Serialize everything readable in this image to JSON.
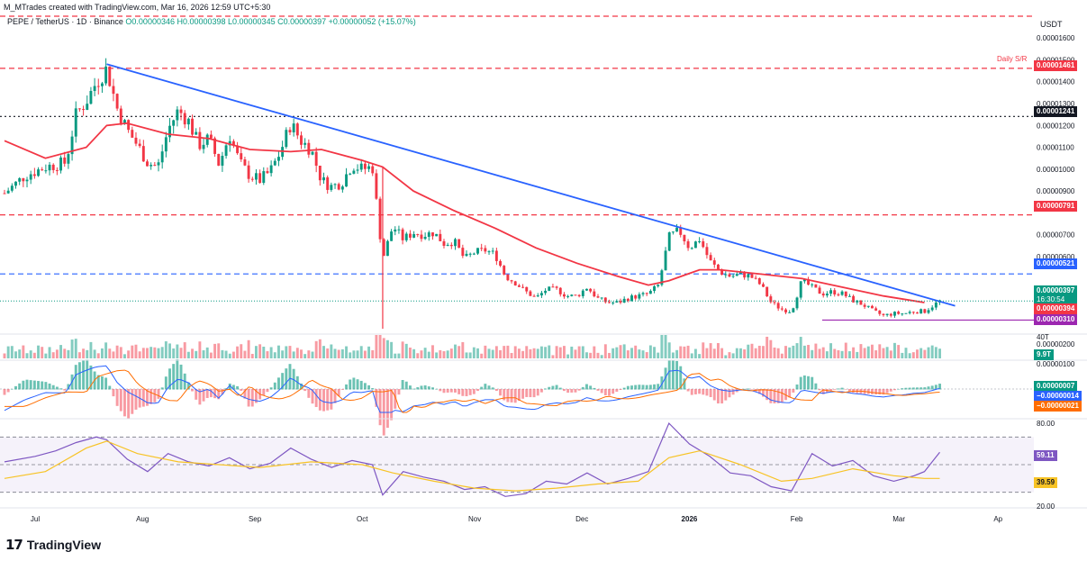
{
  "header": {
    "creator": "M_MTrades created with TradingView.com, Mar 16, 2026 12:59 UTC+5:30",
    "symbol": "PEPE / TetherUS · 1D · Binance",
    "ohlc": "O0.00000346 H0.00000398 L0.00000345 C0.00000397 +0.00000052 (+15.07%)"
  },
  "currency": "USDT",
  "brand": "TradingView",
  "colors": {
    "up": "#089981",
    "down": "#f23645",
    "trendline": "#2962ff",
    "ma": "#f23645",
    "sr": "#f23645",
    "dashed_blue": "#2962ff",
    "rsi": "#7e57c2",
    "rsi_ma": "#f7c325",
    "macd": "#2962ff",
    "signal": "#ff6d00"
  },
  "annotations": {
    "daily_sr": "Daily S/R"
  },
  "badges": {
    "b1461": "0.00001461",
    "b1241": "0.00001241",
    "b791": "0.00000791",
    "b521": "0.00000521",
    "b397": "0.00000397",
    "countdown": "16:30:54",
    "b394": "0.00000394",
    "b310": "0.00000310",
    "vol": "9.9T",
    "macd_hist": "0.00000007",
    "macd_line": "−0.00000014",
    "macd_signal": "−0.00000021",
    "rsi": "59.11",
    "rsi_ma": "39.59"
  },
  "chart_data": {
    "type": "candlestick",
    "x_axis": {
      "labels": [
        "Jul",
        "Aug",
        "Sep",
        "Oct",
        "Nov",
        "Dec",
        "2026",
        "Feb",
        "Mar",
        "Ap"
      ]
    },
    "price_axis": {
      "ticks": [
        "0.00001600",
        "0.00001500",
        "0.00001400",
        "0.00001300",
        "0.00001200",
        "0.00001100",
        "0.00001000",
        "0.00000900",
        "0.00000700",
        "0.00000600",
        "0.00000300",
        "0.00000200"
      ],
      "ylim": [
        2.5e-06,
        1.65e-05
      ]
    },
    "horizontal_levels": [
      {
        "value": 1.461e-05,
        "style": "dashed",
        "color": "#f23645"
      },
      {
        "value": 1.241e-05,
        "style": "dotted",
        "color": "#131722"
      },
      {
        "value": 7.91e-06,
        "style": "dashed",
        "color": "#f23645"
      },
      {
        "value": 5.21e-06,
        "style": "dashed",
        "color": "#2962ff"
      },
      {
        "value": 3.1e-06,
        "style": "solid",
        "color": "#9c27b0"
      }
    ],
    "trendline": {
      "from": [
        0.1,
        1.48e-05
      ],
      "to": [
        0.93,
        3.75e-06
      ]
    },
    "close_path": [
      [
        0.0,
        8.9e-06
      ],
      [
        0.02,
        9.7e-06
      ],
      [
        0.04,
        1.01e-05
      ],
      [
        0.06,
        1.03e-05
      ],
      [
        0.07,
        1.25e-05
      ],
      [
        0.08,
        1.31e-05
      ],
      [
        0.09,
        1.4e-05
      ],
      [
        0.1,
        1.46e-05
      ],
      [
        0.11,
        1.28e-05
      ],
      [
        0.12,
        1.18e-05
      ],
      [
        0.13,
        1.11e-05
      ],
      [
        0.14,
        1.03e-05
      ],
      [
        0.15,
        1.01e-05
      ],
      [
        0.16,
        1.18e-05
      ],
      [
        0.17,
        1.27e-05
      ],
      [
        0.18,
        1.22e-05
      ],
      [
        0.19,
        1.11e-05
      ],
      [
        0.2,
        1.14e-05
      ],
      [
        0.21,
        1.02e-05
      ],
      [
        0.22,
        1.16e-05
      ],
      [
        0.23,
        1.03e-05
      ],
      [
        0.24,
        9.7e-06
      ],
      [
        0.25,
        9.5e-06
      ],
      [
        0.26,
        9.9e-06
      ],
      [
        0.27,
        1.08e-05
      ],
      [
        0.28,
        1.21e-05
      ],
      [
        0.29,
        1.13e-05
      ],
      [
        0.3,
        1.09e-05
      ],
      [
        0.31,
        9.5e-06
      ],
      [
        0.32,
        9.2e-06
      ],
      [
        0.33,
        9.4e-06
      ],
      [
        0.34,
        1.02e-05
      ],
      [
        0.35,
        1e-05
      ],
      [
        0.36,
        1.01e-05
      ],
      [
        0.37,
        5.9e-06
      ],
      [
        0.38,
        7.4e-06
      ],
      [
        0.39,
        6.8e-06
      ],
      [
        0.4,
        7.1e-06
      ],
      [
        0.41,
        7e-06
      ],
      [
        0.42,
        7.1e-06
      ],
      [
        0.43,
        6.6e-06
      ],
      [
        0.44,
        6.7e-06
      ],
      [
        0.45,
        5.9e-06
      ],
      [
        0.46,
        6.2e-06
      ],
      [
        0.47,
        6.3e-06
      ],
      [
        0.48,
        6.1e-06
      ],
      [
        0.49,
        5.1e-06
      ],
      [
        0.5,
        4.8e-06
      ],
      [
        0.51,
        4.4e-06
      ],
      [
        0.52,
        4.1e-06
      ],
      [
        0.53,
        4.5e-06
      ],
      [
        0.54,
        4.5e-06
      ],
      [
        0.55,
        4.2e-06
      ],
      [
        0.56,
        4.2e-06
      ],
      [
        0.57,
        4.6e-06
      ],
      [
        0.58,
        4.1e-06
      ],
      [
        0.59,
        3.9e-06
      ],
      [
        0.6,
        3.9e-06
      ],
      [
        0.61,
        4.1e-06
      ],
      [
        0.62,
        4.2e-06
      ],
      [
        0.63,
        4.3e-06
      ],
      [
        0.64,
        4.7e-06
      ],
      [
        0.65,
        6.9e-06
      ],
      [
        0.66,
        7.2e-06
      ],
      [
        0.67,
        6.4e-06
      ],
      [
        0.68,
        6.8e-06
      ],
      [
        0.69,
        5.8e-06
      ],
      [
        0.7,
        5.3e-06
      ],
      [
        0.71,
        5.1e-06
      ],
      [
        0.72,
        5.2e-06
      ],
      [
        0.73,
        5.1e-06
      ],
      [
        0.74,
        4.7e-06
      ],
      [
        0.75,
        3.9e-06
      ],
      [
        0.76,
        3.6e-06
      ],
      [
        0.77,
        3.5e-06
      ],
      [
        0.78,
        4.9e-06
      ],
      [
        0.79,
        4.6e-06
      ],
      [
        0.8,
        4.3e-06
      ],
      [
        0.81,
        4.4e-06
      ],
      [
        0.82,
        4.3e-06
      ],
      [
        0.83,
        4e-06
      ],
      [
        0.84,
        3.8e-06
      ],
      [
        0.85,
        3.5e-06
      ],
      [
        0.86,
        3.3e-06
      ],
      [
        0.87,
        3.4e-06
      ],
      [
        0.88,
        3.4e-06
      ],
      [
        0.89,
        3.5e-06
      ],
      [
        0.9,
        3.5e-06
      ],
      [
        0.915,
        3.97e-06
      ]
    ],
    "ma_path": [
      [
        0.0,
        1.13e-05
      ],
      [
        0.04,
        1.05e-05
      ],
      [
        0.08,
        1.1e-05
      ],
      [
        0.1,
        1.2e-05
      ],
      [
        0.12,
        1.21e-05
      ],
      [
        0.16,
        1.16e-05
      ],
      [
        0.2,
        1.14e-05
      ],
      [
        0.24,
        1.09e-05
      ],
      [
        0.28,
        1.08e-05
      ],
      [
        0.31,
        1.09e-05
      ],
      [
        0.35,
        1.04e-05
      ],
      [
        0.37,
        1.01e-05
      ],
      [
        0.4,
        9e-06
      ],
      [
        0.44,
        8.1e-06
      ],
      [
        0.48,
        7.3e-06
      ],
      [
        0.52,
        6.4e-06
      ],
      [
        0.56,
        5.7e-06
      ],
      [
        0.6,
        5.1e-06
      ],
      [
        0.63,
        4.7e-06
      ],
      [
        0.65,
        4.9e-06
      ],
      [
        0.68,
        5.4e-06
      ],
      [
        0.7,
        5.4e-06
      ],
      [
        0.74,
        5.2e-06
      ],
      [
        0.78,
        5e-06
      ],
      [
        0.82,
        4.6e-06
      ],
      [
        0.86,
        4.2e-06
      ],
      [
        0.9,
        3.9e-06
      ]
    ],
    "volume": {
      "label": "9.9T"
    },
    "macd": {
      "ticks": [
        "0.00000100"
      ],
      "hist": 7e-08,
      "macd": -1.4e-07,
      "signal": -2.1e-07
    },
    "rsi": {
      "ticks": [
        "80.00",
        "20.00"
      ],
      "ylim": [
        20,
        80
      ],
      "bands": [
        70,
        50,
        30
      ],
      "value": 59.11,
      "ma": 39.59,
      "path": [
        [
          0.0,
          52
        ],
        [
          0.03,
          56
        ],
        [
          0.05,
          60
        ],
        [
          0.07,
          66
        ],
        [
          0.09,
          70
        ],
        [
          0.1,
          68
        ],
        [
          0.12,
          54
        ],
        [
          0.14,
          45
        ],
        [
          0.16,
          58
        ],
        [
          0.18,
          52
        ],
        [
          0.2,
          49
        ],
        [
          0.22,
          55
        ],
        [
          0.24,
          47
        ],
        [
          0.26,
          51
        ],
        [
          0.28,
          62
        ],
        [
          0.3,
          54
        ],
        [
          0.32,
          48
        ],
        [
          0.34,
          53
        ],
        [
          0.36,
          50
        ],
        [
          0.37,
          28
        ],
        [
          0.39,
          45
        ],
        [
          0.41,
          41
        ],
        [
          0.43,
          38
        ],
        [
          0.45,
          32
        ],
        [
          0.47,
          34
        ],
        [
          0.49,
          27
        ],
        [
          0.51,
          29
        ],
        [
          0.53,
          38
        ],
        [
          0.55,
          36
        ],
        [
          0.57,
          44
        ],
        [
          0.59,
          36
        ],
        [
          0.61,
          40
        ],
        [
          0.63,
          45
        ],
        [
          0.65,
          80
        ],
        [
          0.67,
          65
        ],
        [
          0.69,
          56
        ],
        [
          0.71,
          44
        ],
        [
          0.73,
          42
        ],
        [
          0.75,
          34
        ],
        [
          0.77,
          31
        ],
        [
          0.79,
          58
        ],
        [
          0.81,
          49
        ],
        [
          0.83,
          53
        ],
        [
          0.85,
          42
        ],
        [
          0.87,
          38
        ],
        [
          0.89,
          42
        ],
        [
          0.9,
          45
        ],
        [
          0.915,
          59
        ]
      ],
      "ma_path": [
        [
          0.0,
          40
        ],
        [
          0.04,
          45
        ],
        [
          0.08,
          62
        ],
        [
          0.1,
          67
        ],
        [
          0.13,
          58
        ],
        [
          0.17,
          52
        ],
        [
          0.21,
          50
        ],
        [
          0.25,
          48
        ],
        [
          0.3,
          52
        ],
        [
          0.35,
          50
        ],
        [
          0.38,
          44
        ],
        [
          0.42,
          38
        ],
        [
          0.46,
          33
        ],
        [
          0.5,
          31
        ],
        [
          0.54,
          33
        ],
        [
          0.58,
          36
        ],
        [
          0.62,
          38
        ],
        [
          0.65,
          55
        ],
        [
          0.68,
          60
        ],
        [
          0.72,
          50
        ],
        [
          0.76,
          38
        ],
        [
          0.79,
          40
        ],
        [
          0.83,
          47
        ],
        [
          0.87,
          42
        ],
        [
          0.9,
          40
        ],
        [
          0.915,
          40
        ]
      ]
    }
  }
}
